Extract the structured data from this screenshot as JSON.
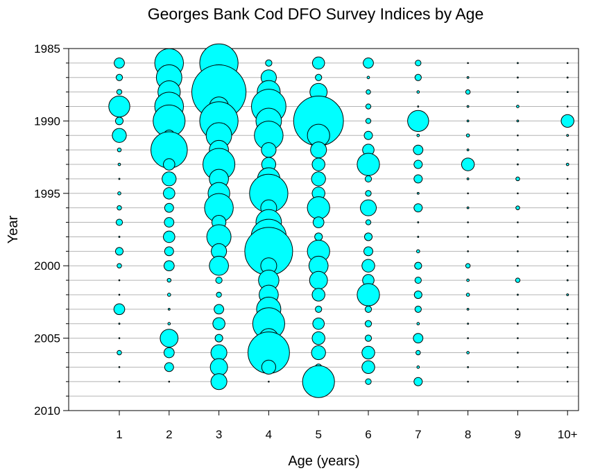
{
  "chart_data": {
    "type": "scatter",
    "title": "Georges Bank Cod DFO Survey Indices by Age",
    "xlabel": "Age (years)",
    "ylabel": "Year",
    "x_categories": [
      "1",
      "2",
      "3",
      "4",
      "5",
      "6",
      "7",
      "8",
      "9",
      "10+"
    ],
    "y_ticks": [
      1985,
      1990,
      1995,
      2000,
      2005,
      2010
    ],
    "ylim": [
      1985,
      2010
    ],
    "y_inverted": true,
    "grid": true,
    "legend": "none",
    "bubble_color": "#00ffff",
    "years": [
      1986,
      1987,
      1988,
      1989,
      1990,
      1991,
      1992,
      1993,
      1994,
      1995,
      1996,
      1997,
      1998,
      1999,
      2000,
      2001,
      2002,
      2003,
      2004,
      2005,
      2006,
      2007,
      2008
    ],
    "note_on_values": "relative bubble size (0-1) per age and year, estimated from the chart",
    "series": [
      {
        "name": "1",
        "values": [
          0.16,
          0.1,
          0.08,
          0.33,
          0.12,
          0.22,
          0.06,
          0.04,
          0.02,
          0.05,
          0.07,
          0.1,
          0.02,
          0.12,
          0.07,
          0.0,
          0.01,
          0.17,
          0.02,
          0.0,
          0.07,
          0.01,
          0.0
        ]
      },
      {
        "name": "2",
        "values": [
          0.45,
          0.4,
          0.35,
          0.45,
          0.5,
          0.17,
          0.57,
          0.18,
          0.22,
          0.18,
          0.14,
          0.15,
          0.18,
          0.14,
          0.16,
          0.06,
          0.05,
          0.03,
          0.04,
          0.28,
          0.16,
          0.14,
          0.0
        ]
      },
      {
        "name": "3",
        "values": [
          0.6,
          0.4,
          0.85,
          0.3,
          0.6,
          0.4,
          0.3,
          0.5,
          0.3,
          0.34,
          0.45,
          0.22,
          0.38,
          0.24,
          0.3,
          0.1,
          0.08,
          0.15,
          0.19,
          0.12,
          0.25,
          0.27,
          0.25
        ]
      },
      {
        "name": "4",
        "values": [
          0.1,
          0.24,
          0.36,
          0.54,
          0.4,
          0.45,
          0.23,
          0.22,
          0.35,
          0.6,
          0.25,
          0.4,
          0.55,
          0.75,
          0.25,
          0.32,
          0.3,
          0.38,
          0.5,
          0.3,
          0.65,
          0.22,
          0.0
        ]
      },
      {
        "name": "5",
        "values": [
          0.19,
          0.1,
          0.27,
          0.3,
          0.78,
          0.35,
          0.25,
          0.2,
          0.22,
          0.2,
          0.35,
          0.17,
          0.12,
          0.35,
          0.3,
          0.28,
          0.2,
          0.1,
          0.18,
          0.2,
          0.22,
          0.1,
          0.5
        ]
      },
      {
        "name": "6",
        "values": [
          0.16,
          0.04,
          0.07,
          0.08,
          0.08,
          0.13,
          0.18,
          0.35,
          0.1,
          0.09,
          0.25,
          0.08,
          0.12,
          0.14,
          0.2,
          0.18,
          0.35,
          0.1,
          0.1,
          0.1,
          0.2,
          0.2,
          0.09
        ]
      },
      {
        "name": "7",
        "values": [
          0.09,
          0.1,
          0.04,
          0.02,
          0.33,
          0.04,
          0.15,
          0.13,
          0.13,
          0.03,
          0.13,
          0.02,
          0.02,
          0.05,
          0.11,
          0.1,
          0.12,
          0.1,
          0.04,
          0.15,
          0.07,
          0.04,
          0.13
        ]
      },
      {
        "name": "8",
        "values": [
          0.01,
          0.03,
          0.07,
          0.03,
          0.03,
          0.05,
          0.03,
          0.2,
          0.03,
          0.01,
          0.03,
          0.01,
          0.01,
          0.0,
          0.07,
          0.04,
          0.05,
          0.03,
          0.02,
          0.01,
          0.04,
          0.02,
          0.01
        ]
      },
      {
        "name": "9",
        "values": [
          0.02,
          0.02,
          0.02,
          0.04,
          0.03,
          0.01,
          0.02,
          0.02,
          0.06,
          0.01,
          0.06,
          0.01,
          0.0,
          0.0,
          0.0,
          0.07,
          0.02,
          0.01,
          0.01,
          0.01,
          0.01,
          0.01,
          0.0
        ]
      },
      {
        "name": "10+",
        "values": [
          0.01,
          0.02,
          0.02,
          0.01,
          0.2,
          0.03,
          0.01,
          0.04,
          0.01,
          0.01,
          0.01,
          0.0,
          0.0,
          0.0,
          0.01,
          0.02,
          0.03,
          0.0,
          0.0,
          0.0,
          0.01,
          0.0,
          0.01
        ]
      }
    ]
  }
}
